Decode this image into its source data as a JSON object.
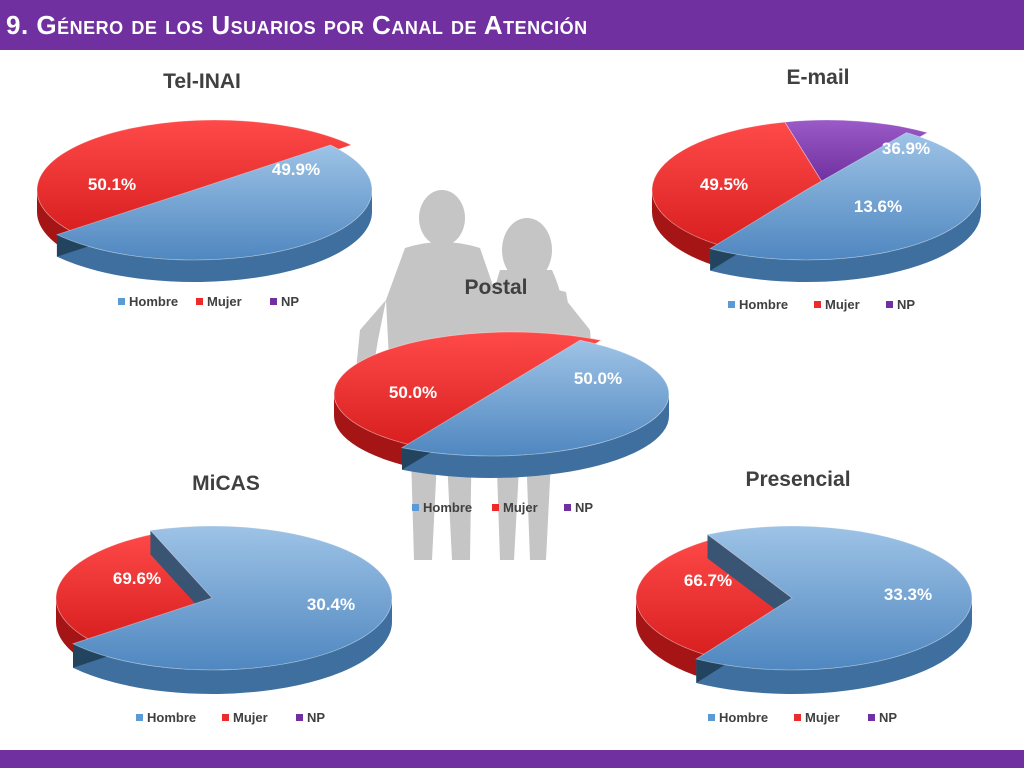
{
  "header": {
    "title": "9. Género de los Usuarios por Canal de Atención"
  },
  "colors": {
    "brand": "#7030a0",
    "hombre": "#5b9bd5",
    "mujer": "#ee2b2b",
    "np": "#7030a0",
    "silhouette": "#bfbfbf"
  },
  "chart_data": [
    {
      "type": "pie",
      "title": "Tel-INAI",
      "categories": [
        "Hombre",
        "Mujer",
        "NP"
      ],
      "values": [
        50.1,
        49.9,
        0
      ],
      "labels": [
        "50.1%",
        "49.9%",
        ""
      ],
      "legend": [
        "Hombre",
        "Mujer",
        "NP"
      ],
      "legend_position": "bottom"
    },
    {
      "type": "pie",
      "title": "E-mail",
      "categories": [
        "Hombre",
        "Mujer",
        "NP"
      ],
      "values": [
        49.5,
        36.9,
        13.6
      ],
      "labels": [
        "49.5%",
        "36.9%",
        "13.6%"
      ],
      "legend": [
        "Hombre",
        "Mujer",
        "NP"
      ],
      "legend_position": "bottom"
    },
    {
      "type": "pie",
      "title": "Postal",
      "categories": [
        "Hombre",
        "Mujer",
        "NP"
      ],
      "values": [
        50.0,
        50.0,
        0
      ],
      "labels": [
        "50.0%",
        "50.0%",
        ""
      ],
      "legend": [
        "Hombre",
        "Mujer",
        "NP"
      ],
      "legend_position": "bottom"
    },
    {
      "type": "pie",
      "title": "MiCAS",
      "categories": [
        "Hombre",
        "Mujer",
        "NP"
      ],
      "values": [
        69.6,
        30.4,
        0
      ],
      "labels": [
        "69.6%",
        "30.4%",
        ""
      ],
      "legend": [
        "Hombre",
        "Mujer",
        "NP"
      ],
      "legend_position": "bottom"
    },
    {
      "type": "pie",
      "title": "Presencial",
      "categories": [
        "Hombre",
        "Mujer",
        "NP"
      ],
      "values": [
        66.7,
        33.3,
        0
      ],
      "labels": [
        "66.7%",
        "33.3%",
        ""
      ],
      "legend": [
        "Hombre",
        "Mujer",
        "NP"
      ],
      "legend_position": "bottom"
    }
  ]
}
